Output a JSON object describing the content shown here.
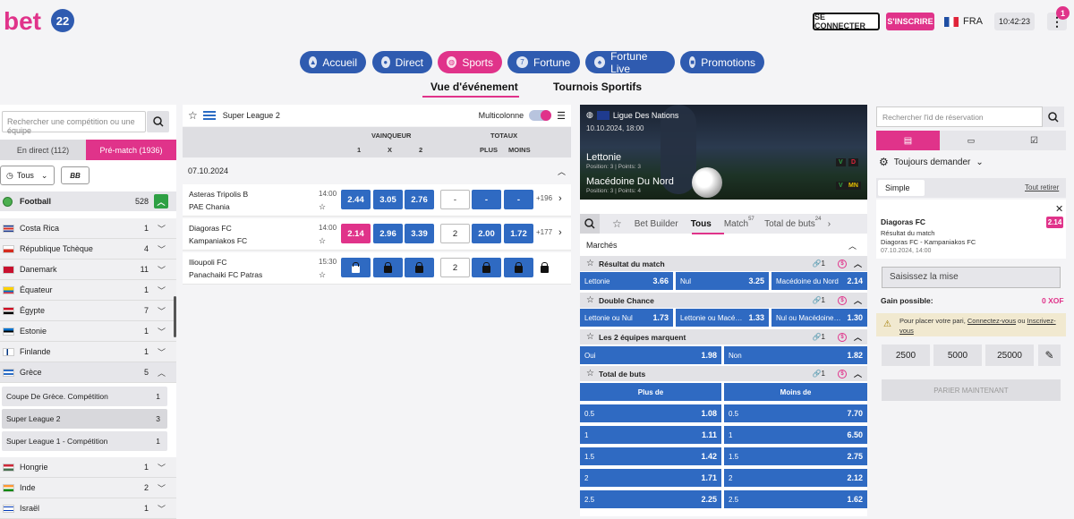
{
  "header": {
    "logo_text": "bet",
    "logo_suffix": "22",
    "login": "SE CONNECTER",
    "signup": "S'INSCRIRE",
    "language": "FRA",
    "time": "10:42:23",
    "notification_count": "1"
  },
  "nav": {
    "items": [
      {
        "label": "Accueil",
        "icon": "flame-icon"
      },
      {
        "label": "Direct",
        "icon": "live-icon"
      },
      {
        "label": "Sports",
        "icon": "ball-icon"
      },
      {
        "label": "Fortune",
        "icon": "slot-icon"
      },
      {
        "label": "Fortune Live",
        "icon": "dealer-icon"
      },
      {
        "label": "Promotions",
        "icon": "gift-icon"
      }
    ],
    "active": "Sports",
    "subtabs": [
      "Vue d'événement",
      "Tournois Sportifs"
    ]
  },
  "left": {
    "search_placeholder": "Rechercher une compétition ou une équipe",
    "tab_live": "En direct (112)",
    "tab_prematch": "Pré-match (1936)",
    "filter": "Tous",
    "bb": "BB",
    "sport": {
      "name": "Football",
      "count": "528"
    },
    "countries": [
      {
        "name": "Costa Rica",
        "count": "1"
      },
      {
        "name": "République Tchèque",
        "count": "4"
      },
      {
        "name": "Danemark",
        "count": "11"
      },
      {
        "name": "Équateur",
        "count": "1"
      },
      {
        "name": "Égypte",
        "count": "7"
      },
      {
        "name": "Estonie",
        "count": "1"
      },
      {
        "name": "Finlande",
        "count": "1"
      },
      {
        "name": "Grèce",
        "count": "5"
      }
    ],
    "competitions": [
      {
        "name": "Coupe De Grèce. Compétition",
        "count": "1"
      },
      {
        "name": "Super League 2",
        "count": "3"
      },
      {
        "name": "Super League 1 - Compétition",
        "count": "1"
      }
    ],
    "countries2": [
      {
        "name": "Hongrie",
        "count": "1"
      },
      {
        "name": "Inde",
        "count": "2"
      },
      {
        "name": "Israël",
        "count": "1"
      }
    ]
  },
  "center": {
    "league": "Super League 2",
    "multicolonne": "Multicolonne",
    "markets": {
      "winner": "VAINQUEUR",
      "totals": "TOTAUX",
      "one": "1",
      "x": "X",
      "two": "2",
      "plus": "PLUS",
      "moins": "MOINS"
    },
    "date": "07.10.2024",
    "matches": [
      {
        "home": "Asteras Tripolis B",
        "away": "PAE Chania",
        "time": "14:00",
        "o1": "2.44",
        "ox": "3.05",
        "o2": "2.76",
        "line": "-",
        "plus": "-",
        "moins": "-",
        "more": "+196"
      },
      {
        "home": "Diagoras FC",
        "away": "Kampaniakos FC",
        "time": "14:00",
        "o1": "2.14",
        "ox": "2.96",
        "o2": "3.39",
        "line": "2",
        "plus": "2.00",
        "moins": "1.72",
        "more": "+177"
      },
      {
        "home": "Ilioupoli FC",
        "away": "Panachaiki FC Patras",
        "time": "15:30",
        "line": "2"
      }
    ]
  },
  "event": {
    "competition": "Ligue Des Nations",
    "date": "10.10.2024, 18:00",
    "home": "Lettonie",
    "home_pos": "Position: 3 | Points: 3",
    "away": "Macédoine Du Nord",
    "away_pos": "Position: 3 | Points: 4",
    "home_form": [
      "V",
      "D"
    ],
    "away_form": [
      "V",
      "MN"
    ],
    "tabs": [
      "Bet Builder",
      "Tous",
      "Match",
      "Total de buts"
    ],
    "tab_match_count": "57",
    "tab_total_count": "24",
    "markets_label": "Marchés",
    "m1": {
      "title": "Résultat du match",
      "links": "1",
      "cells": [
        {
          "n": "Lettonie",
          "v": "3.66"
        },
        {
          "n": "Nul",
          "v": "3.25"
        },
        {
          "n": "Macédoine du Nord",
          "v": "2.14"
        }
      ]
    },
    "m2": {
      "title": "Double Chance",
      "links": "1",
      "cells": [
        {
          "n": "Lettonie ou Nul",
          "v": "1.73"
        },
        {
          "n": "Lettonie ou Macé…",
          "v": "1.33"
        },
        {
          "n": "Nul ou Macédoine…",
          "v": "1.30"
        }
      ]
    },
    "m3": {
      "title": "Les 2 équipes marquent",
      "links": "1",
      "cells": [
        {
          "n": "Oui",
          "v": "1.98"
        },
        {
          "n": "Non",
          "v": "1.82"
        }
      ]
    },
    "m4": {
      "title": "Total de buts",
      "links": "1",
      "plus": "Plus de",
      "moins": "Moins de",
      "rows": [
        {
          "l": "0.5",
          "p": "1.08",
          "m": "7.70"
        },
        {
          "l": "1",
          "p": "1.11",
          "m": "6.50"
        },
        {
          "l": "1.5",
          "p": "1.42",
          "m": "2.75"
        },
        {
          "l": "2",
          "p": "1.71",
          "m": "2.12"
        },
        {
          "l": "2.5",
          "p": "2.25",
          "m": "1.62"
        }
      ]
    }
  },
  "slip": {
    "search_placeholder": "Rechercher l'id de réservation",
    "always": "Toujours demander",
    "simple": "Simple",
    "remove_all": "Tout retirer",
    "team": "Diagoras FC",
    "odd": "2.14",
    "market": "Résultat du match",
    "match": "Diagoras FC - Kampaniakos FC",
    "date": "07.10.2024, 14:00",
    "stake_placeholder": "Saisissez la mise",
    "gain_label": "Gain possible:",
    "gain_value": "0 XOF",
    "warn_pre": "Pour placer votre pari, ",
    "warn_login": "Connectez-vous",
    "warn_mid": " ou ",
    "warn_signup": "Inscrivez-vous",
    "quick": [
      "2500",
      "5000",
      "25000"
    ],
    "place": "PARIER MAINTENANT"
  }
}
